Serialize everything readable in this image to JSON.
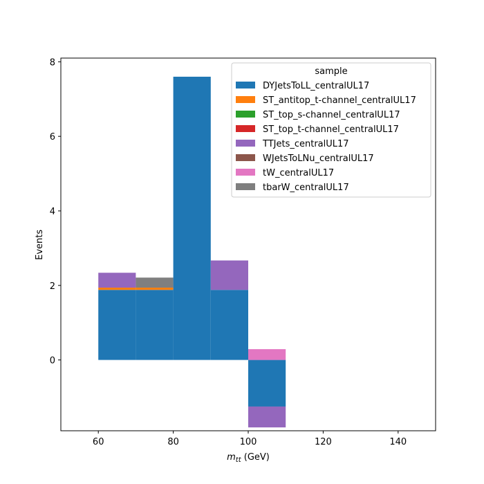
{
  "chart_data": {
    "type": "bar",
    "stacked": true,
    "xlabel_main": "m",
    "xlabel_sub": "tt",
    "xlabel_unit": " (GeV)",
    "ylabel": "Events",
    "xlim": [
      50,
      150
    ],
    "ylim": [
      -1.9,
      8.1
    ],
    "x_ticks": [
      60,
      80,
      100,
      120,
      140
    ],
    "y_ticks": [
      0,
      2,
      4,
      6,
      8
    ],
    "grid": false,
    "legend": {
      "title": "sample",
      "position": "top-right"
    },
    "bin_edges": [
      60,
      70,
      80,
      90,
      100,
      110
    ],
    "series": [
      {
        "name": "DYJetsToLL_centralUL17",
        "color": "#1f77b4",
        "values": [
          1.88,
          1.88,
          7.6,
          1.88,
          -1.25
        ]
      },
      {
        "name": "ST_antitop_t-channel_centralUL17",
        "color": "#ff7f0e",
        "values": [
          0.06,
          0.06,
          0,
          0,
          0
        ]
      },
      {
        "name": "ST_top_s-channel_centralUL17",
        "color": "#2ca02c",
        "values": [
          0,
          0,
          0,
          0,
          0
        ]
      },
      {
        "name": "ST_top_t-channel_centralUL17",
        "color": "#d62728",
        "values": [
          0,
          0,
          0,
          0,
          0
        ]
      },
      {
        "name": "TTJets_centralUL17",
        "color": "#9467bd",
        "values": [
          0.4,
          0,
          0,
          0.79,
          -0.56
        ]
      },
      {
        "name": "WJetsToLNu_centralUL17",
        "color": "#8c564b",
        "values": [
          0,
          0,
          0,
          0,
          0
        ]
      },
      {
        "name": "tW_centralUL17",
        "color": "#e377c2",
        "values": [
          0,
          0,
          0,
          0,
          0.29
        ]
      },
      {
        "name": "tbarW_centralUL17",
        "color": "#7f7f7f",
        "values": [
          0,
          0.27,
          0,
          0,
          0
        ]
      }
    ]
  }
}
